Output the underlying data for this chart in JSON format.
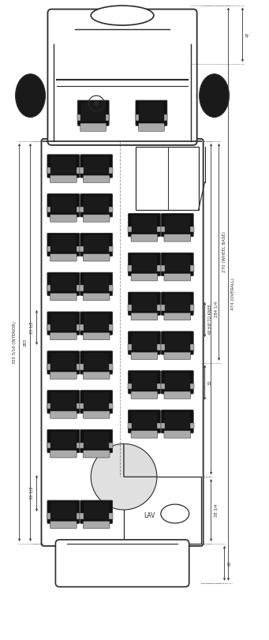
{
  "bg_color": "#ffffff",
  "line_color": "#2a2a2a",
  "seat_dark": "#111111",
  "seat_mid": "#555555",
  "seat_light": "#aaaaaa",
  "fig_width": 3.41,
  "fig_height": 8.11,
  "dimension_labels": {
    "overall_length": "474 (OVERALL)",
    "wheelbase": "270 (WHEEL BASE)",
    "interior": "355 5/16 (INTERIOR)",
    "left_dim1": "283",
    "left_dim2": "25 1/2",
    "left_dim3": "HIP\nTO\nKNEE",
    "left_dim4": "30 1/2",
    "right_dim1": "284 1/4",
    "right_dim2": "48\nHIP\nTO\nKNEE",
    "right_dim3": "30",
    "right_dim4": "38 3/4",
    "right_dim5": "63",
    "top_dim": "47"
  }
}
